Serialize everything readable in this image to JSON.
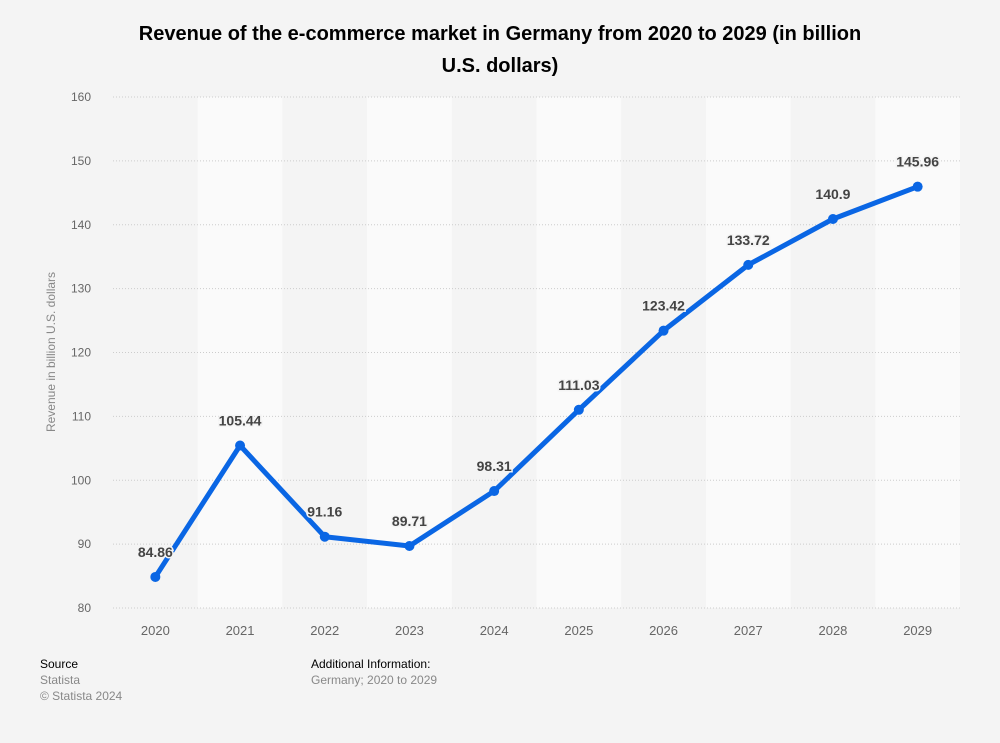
{
  "chart_data": {
    "type": "line",
    "title": "Revenue of the e-commerce market in Germany from 2020 to 2029 (in billion U.S. dollars)",
    "title_lines": [
      "Revenue of the e-commerce market in Germany from 2020 to 2029 (in billion",
      "U.S. dollars)"
    ],
    "xlabel": "",
    "ylabel": "Revenue in billion U.S. dollars",
    "categories": [
      "2020",
      "2021",
      "2022",
      "2023",
      "2024",
      "2025",
      "2026",
      "2027",
      "2028",
      "2029"
    ],
    "series": [
      {
        "name": "Revenue",
        "values": [
          84.86,
          105.44,
          91.16,
          89.71,
          98.31,
          111.03,
          123.42,
          133.72,
          140.9,
          145.96
        ],
        "labels": [
          "84.86",
          "105.44",
          "91.16",
          "89.71",
          "98.31",
          "111.03",
          "123.42",
          "133.72",
          "140.9",
          "145.96"
        ],
        "color": "#0a66e4"
      }
    ],
    "ylim": [
      80,
      160
    ],
    "yticks": [
      80,
      90,
      100,
      110,
      120,
      130,
      140,
      150,
      160
    ],
    "ytick_labels": [
      "80",
      "90",
      "100",
      "110",
      "120",
      "130",
      "140",
      "150",
      "160"
    ],
    "grid": true,
    "legend": "none"
  },
  "footer": {
    "source_heading": "Source",
    "source_name": "Statista",
    "copyright": "© Statista 2024",
    "additional_heading": "Additional Information:",
    "additional_text": "Germany; 2020 to 2029"
  },
  "colors": {
    "line": "#0a66e4",
    "background": "#f4f4f4",
    "band_light": "#fafafa",
    "grid": "#cccccc",
    "tick_text": "#666666",
    "label_text": "#444444"
  }
}
